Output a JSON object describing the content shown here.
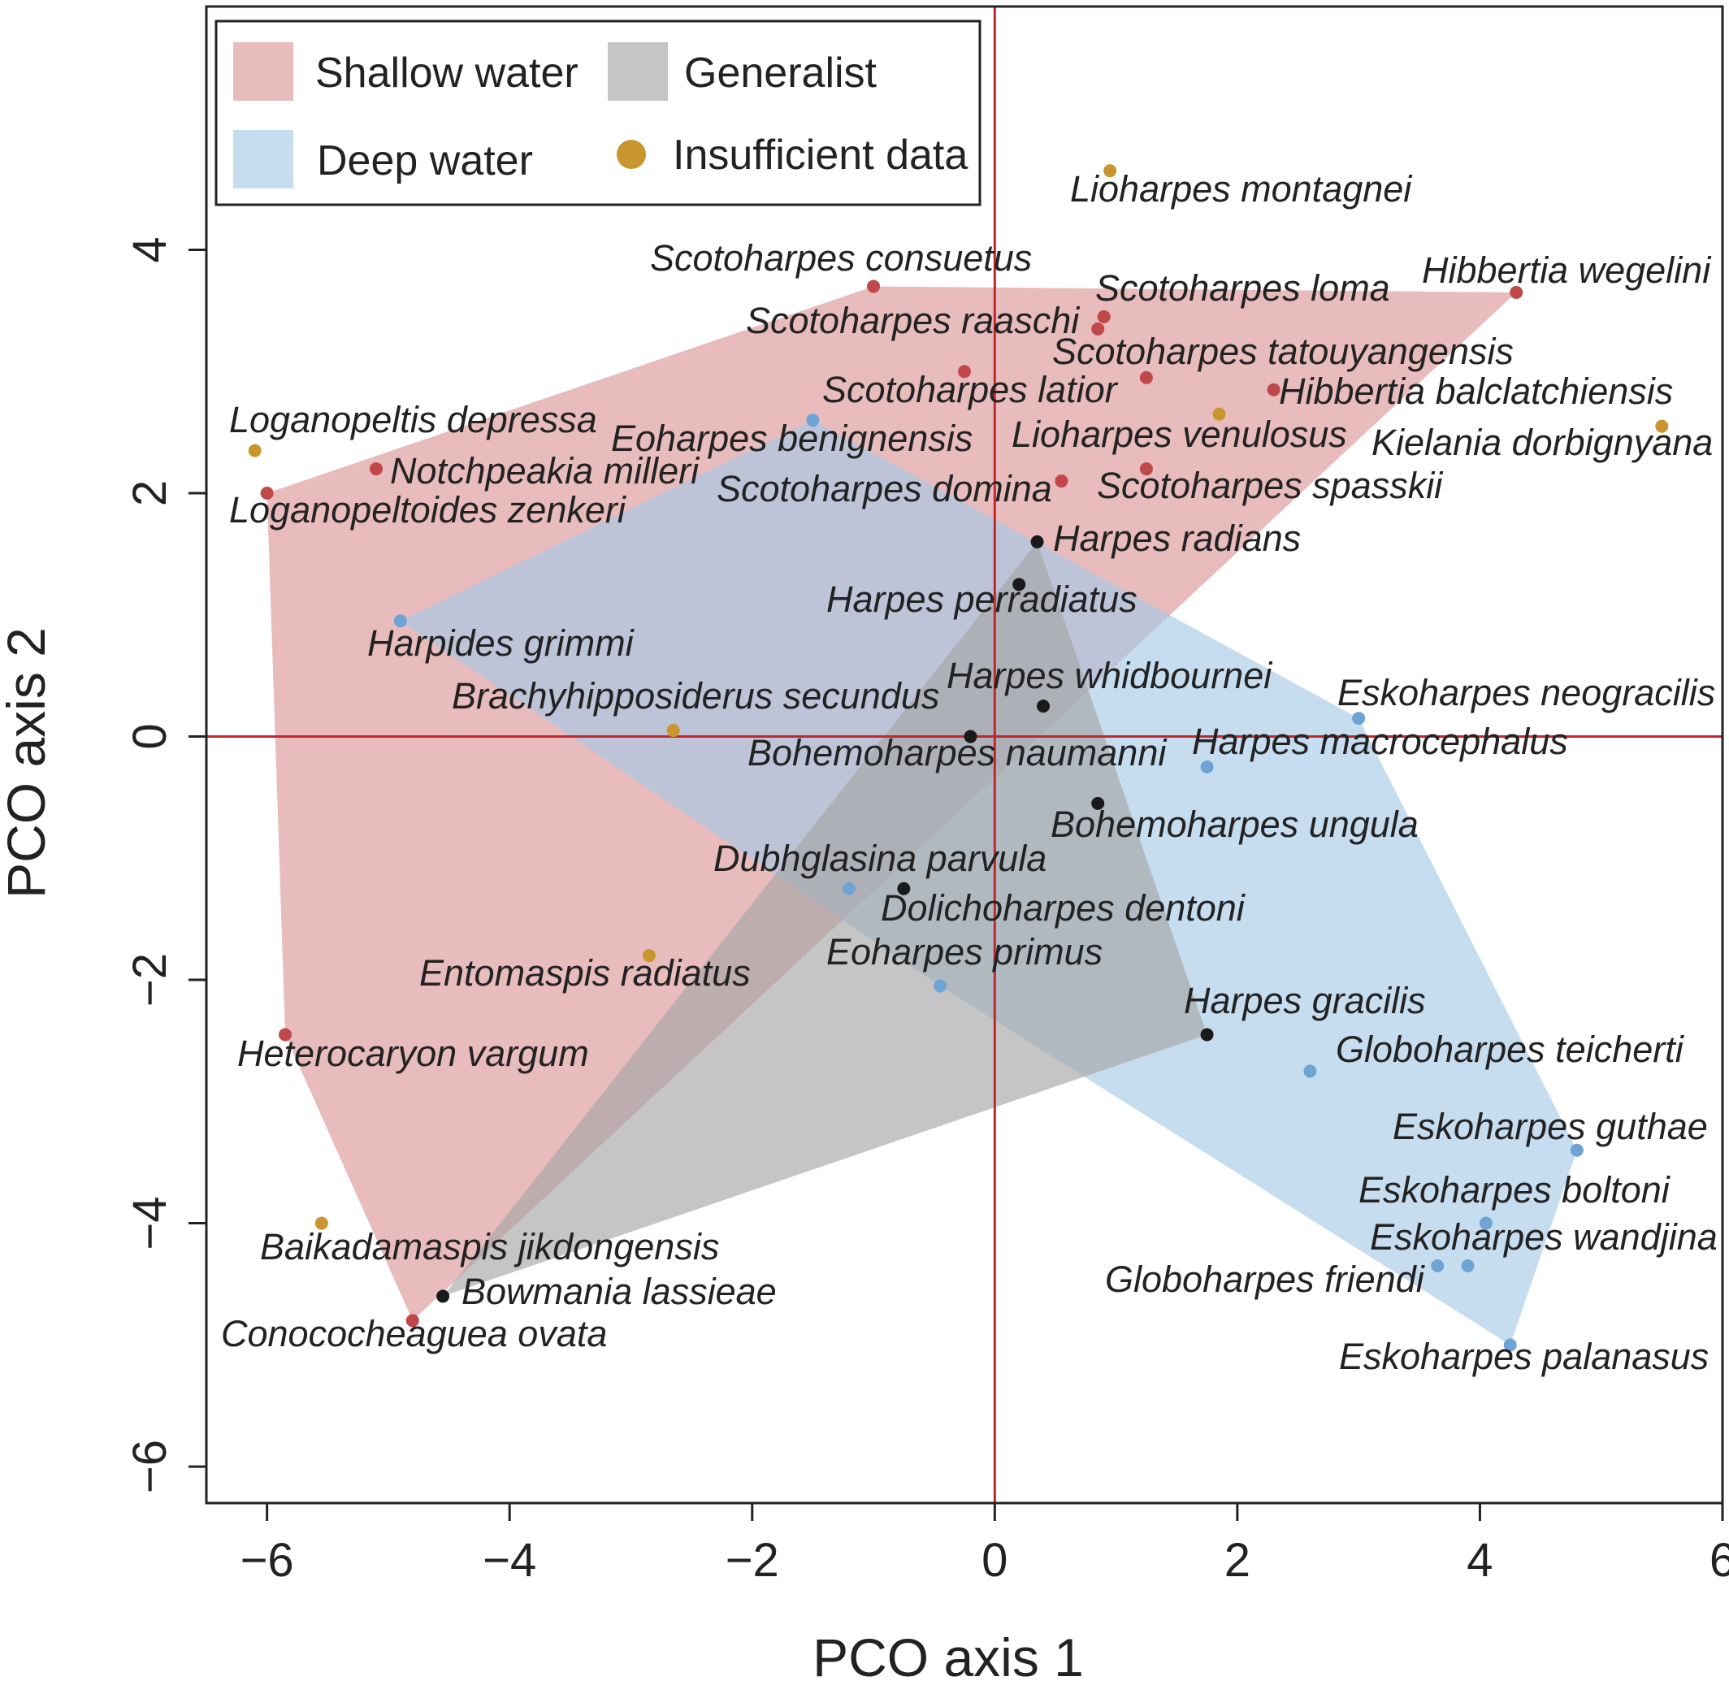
{
  "chart_data": {
    "type": "scatter",
    "xlabel": "PCO axis 1",
    "ylabel": "PCO axis 2",
    "xlim": [
      -6.5,
      6
    ],
    "ylim": [
      -6.3,
      6
    ],
    "xticks": [
      -6,
      -4,
      -2,
      0,
      2,
      4,
      6
    ],
    "yticks": [
      -6,
      -4,
      -2,
      0,
      2,
      4
    ],
    "xtick_labels": [
      "−6",
      "−4",
      "−2",
      "0",
      "2",
      "4",
      "6"
    ],
    "ytick_labels": [
      "−6",
      "−4",
      "−2",
      "0",
      "2",
      "4"
    ],
    "reference_lines": {
      "x": 0,
      "y": 0,
      "color": "#c0272d"
    },
    "legend": {
      "position": "top-left",
      "entries": [
        {
          "label": "Shallow water",
          "symbol": "square",
          "group": "shallow"
        },
        {
          "label": "Generalist",
          "symbol": "square",
          "group": "generalist"
        },
        {
          "label": "Deep water",
          "symbol": "square",
          "group": "deep"
        },
        {
          "label": "Insufficient data",
          "symbol": "circle",
          "group": "insufficient"
        }
      ]
    },
    "groups": {
      "shallow": {
        "point_color": "#c0474a",
        "hull_color": "#dfa1a3",
        "hull_opacity": 0.72
      },
      "generalist": {
        "point_color": "#1a1a1a",
        "hull_color": "#a6a6a6",
        "hull_opacity": 0.65
      },
      "deep": {
        "point_color": "#6fa3d3",
        "hull_color": "#a8c9e6",
        "hull_opacity": 0.65
      },
      "insufficient": {
        "point_color": "#c9952e"
      }
    },
    "hulls": [
      {
        "group": "shallow",
        "vertices": [
          [
            -6.0,
            2.0
          ],
          [
            -1.0,
            3.7
          ],
          [
            4.3,
            3.65
          ],
          [
            -4.8,
            -4.8
          ],
          [
            -5.85,
            -2.45
          ]
        ]
      },
      {
        "group": "deep",
        "vertices": [
          [
            -4.9,
            0.95
          ],
          [
            -1.5,
            2.6
          ],
          [
            3.0,
            0.15
          ],
          [
            4.8,
            -3.4
          ],
          [
            4.25,
            -5.0
          ],
          [
            -0.45,
            -2.05
          ]
        ]
      },
      {
        "group": "generalist",
        "vertices": [
          [
            0.35,
            1.6
          ],
          [
            1.75,
            -2.45
          ],
          [
            -4.55,
            -4.6
          ]
        ]
      }
    ],
    "points": [
      {
        "name": "Lioharpes montagnei",
        "x": 0.95,
        "y": 4.65,
        "group": "insufficient"
      },
      {
        "name": "Scotoharpes consuetus",
        "x": -1.0,
        "y": 3.7,
        "group": "shallow"
      },
      {
        "name": "Hibbertia wegelini",
        "x": 4.3,
        "y": 3.65,
        "group": "shallow"
      },
      {
        "name": "Scotoharpes loma",
        "x": 0.9,
        "y": 3.45,
        "group": "shallow"
      },
      {
        "name": "Scotoharpes raaschi",
        "x": 0.85,
        "y": 3.35,
        "group": "shallow"
      },
      {
        "name": "Scotoharpes tatouyangensis",
        "x": 1.25,
        "y": 2.95,
        "group": "shallow"
      },
      {
        "name": "Scotoharpes latior",
        "x": -0.25,
        "y": 3.0,
        "group": "shallow"
      },
      {
        "name": "Hibbertia balclatchiensis",
        "x": 2.3,
        "y": 2.85,
        "group": "shallow"
      },
      {
        "name": "Lioharpes venulosus",
        "x": 1.85,
        "y": 2.65,
        "group": "insufficient"
      },
      {
        "name": "Kielania dorbignyana",
        "x": 5.5,
        "y": 2.55,
        "group": "insufficient"
      },
      {
        "name": "Loganopeltis depressa",
        "x": -6.1,
        "y": 2.35,
        "group": "insufficient"
      },
      {
        "name": "Eoharpes benignensis",
        "x": -1.5,
        "y": 2.6,
        "group": "deep"
      },
      {
        "name": "Notchpeakia milleri",
        "x": -5.1,
        "y": 2.2,
        "group": "shallow"
      },
      {
        "name": "Scotoharpes spasskii",
        "x": 1.25,
        "y": 2.2,
        "group": "shallow"
      },
      {
        "name": "Scotoharpes domina",
        "x": 0.55,
        "y": 2.1,
        "group": "shallow"
      },
      {
        "name": "Loganopeltoides zenkeri",
        "x": -6.0,
        "y": 2.0,
        "group": "shallow"
      },
      {
        "name": "Harpes radians",
        "x": 0.35,
        "y": 1.6,
        "group": "generalist"
      },
      {
        "name": "Harpes perradiatus",
        "x": 0.2,
        "y": 1.25,
        "group": "generalist"
      },
      {
        "name": "Harpides grimmi",
        "x": -4.9,
        "y": 0.95,
        "group": "deep"
      },
      {
        "name": "Harpes whidbournei",
        "x": 0.4,
        "y": 0.25,
        "group": "generalist"
      },
      {
        "name": "Brachyhipposiderus secundus",
        "x": -2.65,
        "y": 0.05,
        "group": "insufficient"
      },
      {
        "name": "Eskoharpes neogracilis",
        "x": 3.0,
        "y": 0.15,
        "group": "deep"
      },
      {
        "name": "Bohemoharpes naumanni",
        "x": -0.2,
        "y": 0.0,
        "group": "generalist"
      },
      {
        "name": "Harpes macrocephalus",
        "x": 1.75,
        "y": -0.25,
        "group": "deep"
      },
      {
        "name": "Bohemoharpes ungula",
        "x": 0.85,
        "y": -0.55,
        "group": "generalist"
      },
      {
        "name": "Dubhglasina parvula",
        "x": -1.2,
        "y": -1.25,
        "group": "deep"
      },
      {
        "name": "Dolichoharpes dentoni",
        "x": -0.75,
        "y": -1.25,
        "group": "generalist"
      },
      {
        "name": "Entomaspis radiatus",
        "x": -2.85,
        "y": -1.8,
        "group": "insufficient"
      },
      {
        "name": "Eoharpes primus",
        "x": -0.45,
        "y": -2.05,
        "group": "deep"
      },
      {
        "name": "Heterocaryon vargum",
        "x": -5.85,
        "y": -2.45,
        "group": "shallow"
      },
      {
        "name": "Harpes gracilis",
        "x": 1.75,
        "y": -2.45,
        "group": "generalist"
      },
      {
        "name": "Globoharpes teicherti",
        "x": 2.6,
        "y": -2.75,
        "group": "deep"
      },
      {
        "name": "Eskoharpes guthae",
        "x": 4.8,
        "y": -3.4,
        "group": "deep"
      },
      {
        "name": "Eskoharpes boltoni",
        "x": 4.05,
        "y": -4.0,
        "group": "deep"
      },
      {
        "name": "Baikadamaspis jikdongensis",
        "x": -5.55,
        "y": -4.0,
        "group": "insufficient"
      },
      {
        "name": "Eskoharpes wandjina",
        "x": 3.9,
        "y": -4.35,
        "group": "deep"
      },
      {
        "name": "Globoharpes friendi",
        "x": 3.65,
        "y": -4.35,
        "group": "deep"
      },
      {
        "name": "Bowmania lassieae",
        "x": -4.55,
        "y": -4.6,
        "group": "generalist"
      },
      {
        "name": "Conococheaguea ovata",
        "x": -4.8,
        "y": -4.8,
        "group": "shallow"
      },
      {
        "name": "Eskoharpes palanasus",
        "x": 4.25,
        "y": -5.0,
        "group": "deep"
      }
    ]
  }
}
